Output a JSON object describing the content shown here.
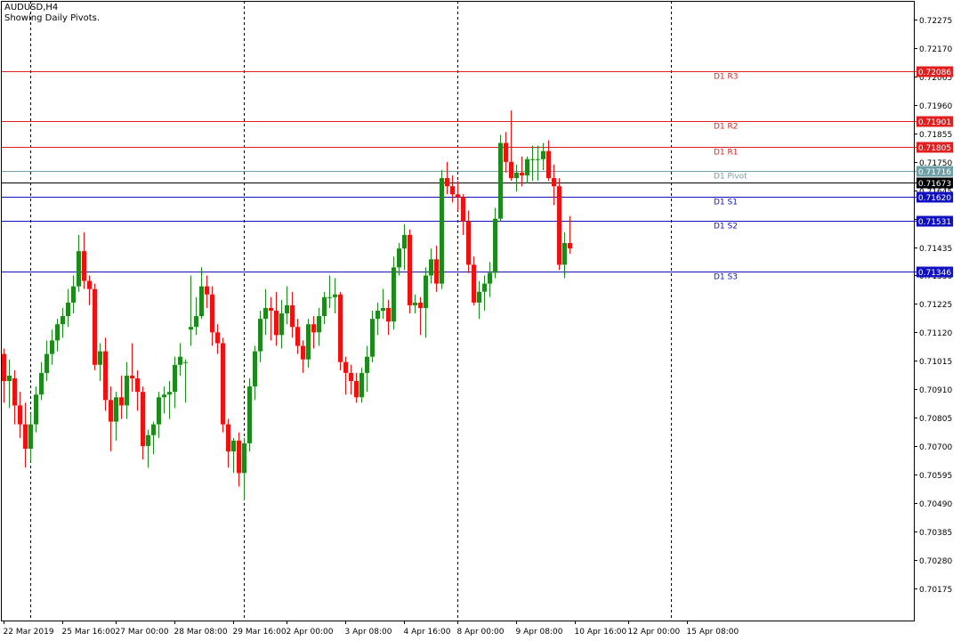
{
  "window": {
    "symbol_title": "AUDUSD,H4",
    "indicator_note": "Showing Daily Pivots."
  },
  "colors": {
    "background": "#ffffff",
    "frame": "#000000",
    "bull": "#1e8a1e",
    "bear": "#ee1111",
    "resistance": "#e02020",
    "support": "#1010c0",
    "pivot": "#6fa0a6",
    "current": "#000000"
  },
  "chart_data": {
    "type": "candlestick",
    "symbol": "AUDUSD",
    "timeframe": "H4",
    "ylim": [
      0.70055,
      0.72345
    ],
    "y_ticks": [
      "0.72275",
      "0.72170",
      "0.72065",
      "0.71960",
      "0.71855",
      "0.71750",
      "0.71645",
      "0.71540",
      "0.71435",
      "0.71330",
      "0.71225",
      "0.71120",
      "0.71015",
      "0.70910",
      "0.70805",
      "0.70700",
      "0.70595",
      "0.70490",
      "0.70385",
      "0.70280",
      "0.70175"
    ],
    "x_ticks": [
      {
        "bar": 0,
        "label": "22 Mar 2019"
      },
      {
        "bar": 11,
        "label": "25 Mar 16:00"
      },
      {
        "bar": 21,
        "label": "27 Mar 00:00"
      },
      {
        "bar": 32,
        "label": "28 Mar 08:00"
      },
      {
        "bar": 43,
        "label": "29 Mar 16:00"
      },
      {
        "bar": 53,
        "label": "2 Apr 00:00"
      },
      {
        "bar": 64,
        "label": "3 Apr 08:00"
      },
      {
        "bar": 75,
        "label": "4 Apr 16:00"
      },
      {
        "bar": 85,
        "label": "8 Apr 00:00"
      },
      {
        "bar": 96,
        "label": "9 Apr 08:00"
      },
      {
        "bar": 107,
        "label": "10 Apr 16:00"
      },
      {
        "bar": 117,
        "label": "12 Apr 00:00"
      },
      {
        "bar": 128,
        "label": "15 Apr 08:00"
      }
    ],
    "period_separators": [
      5,
      45,
      85,
      125
    ],
    "levels": [
      {
        "name": "D1 R3",
        "value": 0.72086,
        "label": "0.72086",
        "kind": "resistance"
      },
      {
        "name": "D1 R2",
        "value": 0.71901,
        "label": "0.71901",
        "kind": "resistance"
      },
      {
        "name": "D1 R1",
        "value": 0.71805,
        "label": "0.71805",
        "kind": "resistance"
      },
      {
        "name": "D1 Pivot",
        "value": 0.71716,
        "label": "0.71716",
        "kind": "pivot"
      },
      {
        "name": "D1 S1",
        "value": 0.7162,
        "label": "0.71620",
        "kind": "support"
      },
      {
        "name": "D1 S2",
        "value": 0.71531,
        "label": "0.71531",
        "kind": "support"
      },
      {
        "name": "D1 S3",
        "value": 0.71346,
        "label": "0.71346",
        "kind": "support"
      }
    ],
    "current_price": {
      "value": 0.71673,
      "label": "0.71673"
    },
    "candles": [
      [
        0.7104,
        0.7106,
        0.7086,
        0.7094
      ],
      [
        0.7094,
        0.7102,
        0.7084,
        0.7096
      ],
      [
        0.7095,
        0.7098,
        0.7078,
        0.7085
      ],
      [
        0.7085,
        0.709,
        0.7073,
        0.7078
      ],
      [
        0.7078,
        0.7086,
        0.7062,
        0.7069
      ],
      [
        0.7069,
        0.7082,
        0.7064,
        0.7078
      ],
      [
        0.7078,
        0.7092,
        0.7075,
        0.7089
      ],
      [
        0.7089,
        0.7101,
        0.7087,
        0.7097
      ],
      [
        0.7097,
        0.7109,
        0.7094,
        0.7104
      ],
      [
        0.7104,
        0.7113,
        0.71,
        0.7109
      ],
      [
        0.7109,
        0.7117,
        0.7105,
        0.7115
      ],
      [
        0.7115,
        0.7121,
        0.711,
        0.7118
      ],
      [
        0.7118,
        0.7128,
        0.7114,
        0.7123
      ],
      [
        0.7123,
        0.7133,
        0.7119,
        0.7129
      ],
      [
        0.7129,
        0.7148,
        0.7127,
        0.7142
      ],
      [
        0.7142,
        0.7149,
        0.7128,
        0.7131
      ],
      [
        0.7131,
        0.7133,
        0.7122,
        0.7128
      ],
      [
        0.7128,
        0.713,
        0.7098,
        0.71
      ],
      [
        0.71,
        0.7108,
        0.7094,
        0.7105
      ],
      [
        0.7105,
        0.711,
        0.7083,
        0.7087
      ],
      [
        0.7087,
        0.7092,
        0.7068,
        0.7079
      ],
      [
        0.7079,
        0.709,
        0.7072,
        0.7088
      ],
      [
        0.7088,
        0.7096,
        0.708,
        0.7085
      ],
      [
        0.7085,
        0.7101,
        0.708,
        0.7096
      ],
      [
        0.7096,
        0.7108,
        0.709,
        0.7095
      ],
      [
        0.7095,
        0.7098,
        0.7083,
        0.709
      ],
      [
        0.709,
        0.7092,
        0.7065,
        0.707
      ],
      [
        0.707,
        0.7076,
        0.7062,
        0.7074
      ],
      [
        0.7074,
        0.7079,
        0.7067,
        0.7078
      ],
      [
        0.7078,
        0.709,
        0.7073,
        0.7088
      ],
      [
        0.7088,
        0.7092,
        0.7082,
        0.7089
      ],
      [
        0.7089,
        0.7094,
        0.708,
        0.709
      ],
      [
        0.709,
        0.7103,
        0.7084,
        0.71
      ],
      [
        0.71,
        0.7108,
        0.7096,
        0.7103
      ],
      [
        0.7101,
        0.7102,
        0.7086,
        0.7101
      ],
      [
        0.7113,
        0.7133,
        0.7107,
        0.7114
      ],
      [
        0.7114,
        0.7125,
        0.7111,
        0.7118
      ],
      [
        0.7118,
        0.7136,
        0.7117,
        0.7129
      ],
      [
        0.7129,
        0.7133,
        0.7121,
        0.7126
      ],
      [
        0.7126,
        0.7129,
        0.7107,
        0.7112
      ],
      [
        0.7112,
        0.7115,
        0.7104,
        0.7108
      ],
      [
        0.7108,
        0.711,
        0.7075,
        0.7078
      ],
      [
        0.7078,
        0.708,
        0.7062,
        0.7068
      ],
      [
        0.7068,
        0.7073,
        0.706,
        0.7072
      ],
      [
        0.7072,
        0.7075,
        0.7055,
        0.706
      ],
      [
        0.706,
        0.7073,
        0.705,
        0.7071
      ],
      [
        0.7071,
        0.7095,
        0.7068,
        0.7092
      ],
      [
        0.7092,
        0.7107,
        0.7087,
        0.7105
      ],
      [
        0.7105,
        0.712,
        0.7101,
        0.7117
      ],
      [
        0.7117,
        0.7128,
        0.7111,
        0.7121
      ],
      [
        0.7121,
        0.7125,
        0.7109,
        0.712
      ],
      [
        0.712,
        0.7127,
        0.7107,
        0.7111
      ],
      [
        0.7111,
        0.7124,
        0.7106,
        0.7119
      ],
      [
        0.7119,
        0.7129,
        0.7115,
        0.7122
      ],
      [
        0.7122,
        0.7127,
        0.711,
        0.7114
      ],
      [
        0.7114,
        0.7117,
        0.7104,
        0.7107
      ],
      [
        0.7107,
        0.7109,
        0.7097,
        0.7102
      ],
      [
        0.7102,
        0.7117,
        0.7099,
        0.7115
      ],
      [
        0.7115,
        0.7118,
        0.7106,
        0.7112
      ],
      [
        0.7112,
        0.7121,
        0.7107,
        0.7118
      ],
      [
        0.7118,
        0.7127,
        0.7115,
        0.7125
      ],
      [
        0.7125,
        0.7133,
        0.7121,
        0.7125
      ],
      [
        0.7125,
        0.7132,
        0.7119,
        0.7126
      ],
      [
        0.7126,
        0.7127,
        0.7098,
        0.7101
      ],
      [
        0.7101,
        0.7103,
        0.7089,
        0.7097
      ],
      [
        0.7097,
        0.71,
        0.7089,
        0.7094
      ],
      [
        0.7094,
        0.7097,
        0.7086,
        0.7088
      ],
      [
        0.7088,
        0.7099,
        0.7086,
        0.7097
      ],
      [
        0.7097,
        0.7107,
        0.709,
        0.7103
      ],
      [
        0.7103,
        0.712,
        0.7101,
        0.7117
      ],
      [
        0.7117,
        0.7123,
        0.7111,
        0.712
      ],
      [
        0.712,
        0.7128,
        0.7117,
        0.7121
      ],
      [
        0.7121,
        0.7124,
        0.7111,
        0.7116
      ],
      [
        0.7116,
        0.714,
        0.7113,
        0.7136
      ],
      [
        0.7136,
        0.7145,
        0.7133,
        0.7143
      ],
      [
        0.7143,
        0.7152,
        0.7135,
        0.7148
      ],
      [
        0.7148,
        0.715,
        0.7119,
        0.7122
      ],
      [
        0.7122,
        0.7126,
        0.7119,
        0.7123
      ],
      [
        0.7123,
        0.7125,
        0.7111,
        0.7121
      ],
      [
        0.7121,
        0.7136,
        0.711,
        0.7133
      ],
      [
        0.7133,
        0.7143,
        0.713,
        0.7139
      ],
      [
        0.7139,
        0.7144,
        0.7127,
        0.713
      ],
      [
        0.713,
        0.7172,
        0.7128,
        0.7169
      ],
      [
        0.7169,
        0.7175,
        0.7163,
        0.7166
      ],
      [
        0.7166,
        0.717,
        0.716,
        0.7163
      ],
      [
        0.7163,
        0.7168,
        0.7157,
        0.7162
      ],
      [
        0.7162,
        0.7163,
        0.7148,
        0.7153
      ],
      [
        0.7153,
        0.7157,
        0.7134,
        0.7137
      ],
      [
        0.7137,
        0.714,
        0.7122,
        0.7123
      ],
      [
        0.7123,
        0.7131,
        0.7117,
        0.7127
      ],
      [
        0.7127,
        0.7133,
        0.712,
        0.713
      ],
      [
        0.713,
        0.7138,
        0.7125,
        0.7134
      ],
      [
        0.7134,
        0.7158,
        0.7132,
        0.7154
      ],
      [
        0.7154,
        0.7185,
        0.7153,
        0.7182
      ],
      [
        0.7182,
        0.7186,
        0.7171,
        0.7175
      ],
      [
        0.7175,
        0.7194,
        0.7168,
        0.7169
      ],
      [
        0.7169,
        0.7174,
        0.7164,
        0.7171
      ],
      [
        0.7171,
        0.7177,
        0.7166,
        0.717
      ],
      [
        0.717,
        0.7177,
        0.7167,
        0.7176
      ],
      [
        0.7176,
        0.7181,
        0.7168,
        0.7176
      ],
      [
        0.7176,
        0.7181,
        0.7168,
        0.7176
      ],
      [
        0.7176,
        0.7182,
        0.7172,
        0.7179
      ],
      [
        0.7179,
        0.7183,
        0.7168,
        0.7169
      ],
      [
        0.7169,
        0.7174,
        0.7159,
        0.7166
      ],
      [
        0.7166,
        0.7169,
        0.7135,
        0.7137
      ],
      [
        0.7137,
        0.7149,
        0.7132,
        0.7145
      ],
      [
        0.7145,
        0.7155,
        0.7141,
        0.7143
      ]
    ]
  }
}
